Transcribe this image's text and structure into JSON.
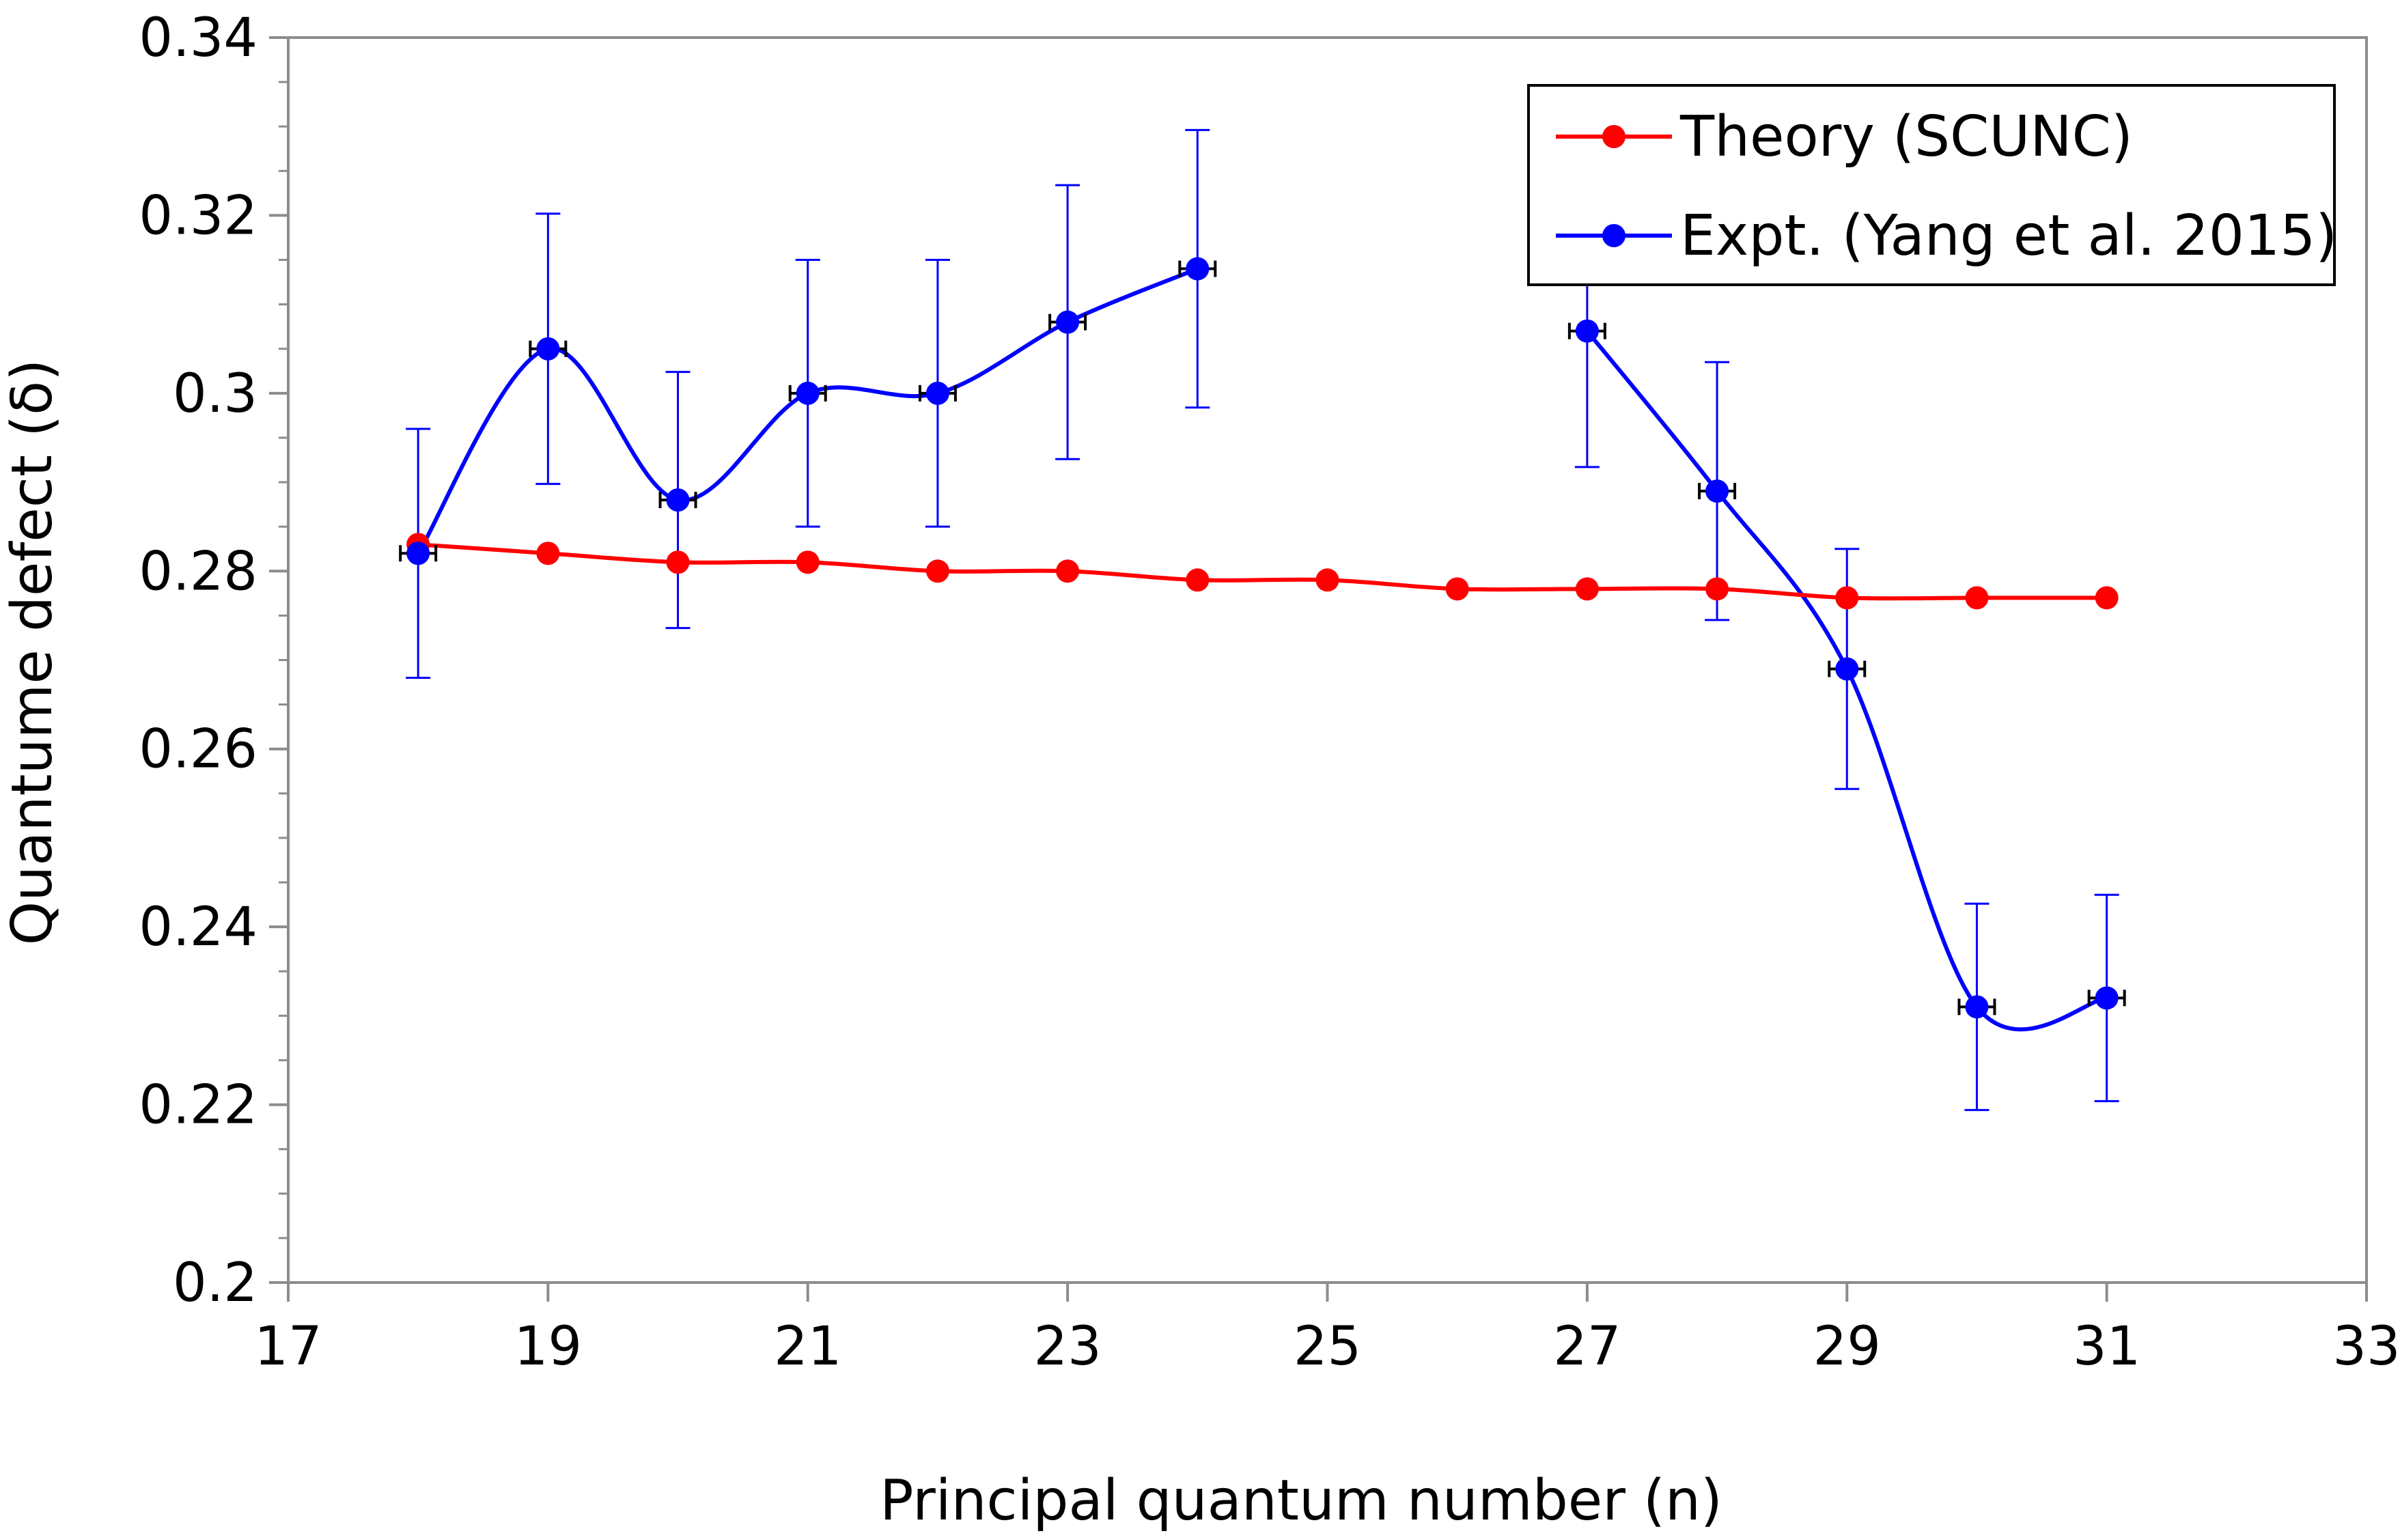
{
  "chart_data": {
    "type": "line",
    "xlabel": "Principal quantum number (n)",
    "ylabel": "Quantume defect (δ)",
    "xlim": [
      17,
      33
    ],
    "ylim": [
      0.2,
      0.34
    ],
    "x_ticks": [
      17,
      19,
      21,
      23,
      25,
      27,
      29,
      31,
      33
    ],
    "y_ticks": [
      0.2,
      0.22,
      0.24,
      0.26,
      0.28,
      0.3,
      0.32,
      0.34
    ],
    "x_tick_labels": [
      "17",
      "19",
      "21",
      "23",
      "25",
      "27",
      "29",
      "31",
      "33"
    ],
    "y_tick_labels": [
      "0.2",
      "0.22",
      "0.24",
      "0.26",
      "0.28",
      "0.3",
      "0.32",
      "0.34"
    ],
    "grid": false,
    "legend_position": "top-right",
    "series": [
      {
        "name": "Theory (SCUNC)",
        "color": "#ff0000",
        "marker": "circle",
        "x": [
          18,
          19,
          20,
          21,
          22,
          23,
          24,
          25,
          26,
          27,
          28,
          29,
          30,
          31
        ],
        "y": [
          0.283,
          0.282,
          0.281,
          0.281,
          0.28,
          0.28,
          0.279,
          0.279,
          0.278,
          0.278,
          0.278,
          0.277,
          0.277,
          0.277
        ]
      },
      {
        "name": "Expt. (Yang et al. 2015)",
        "color": "#0000ff",
        "marker": "circle",
        "segments": [
          {
            "x": [
              18,
              19,
              20,
              21,
              22,
              23,
              24
            ],
            "y": [
              0.282,
              0.305,
              0.288,
              0.3,
              0.3,
              0.308,
              0.314
            ],
            "err": [
              0.014,
              0.0152,
              0.0144,
              0.015,
              0.015,
              0.0154,
              0.0156
            ]
          },
          {
            "x": [
              27,
              28,
              29,
              30,
              31
            ],
            "y": [
              0.307,
              0.289,
              0.269,
              0.231,
              0.232
            ],
            "err": [
              0.0153,
              0.0145,
              0.0135,
              0.0116,
              0.0116
            ]
          }
        ]
      }
    ]
  }
}
